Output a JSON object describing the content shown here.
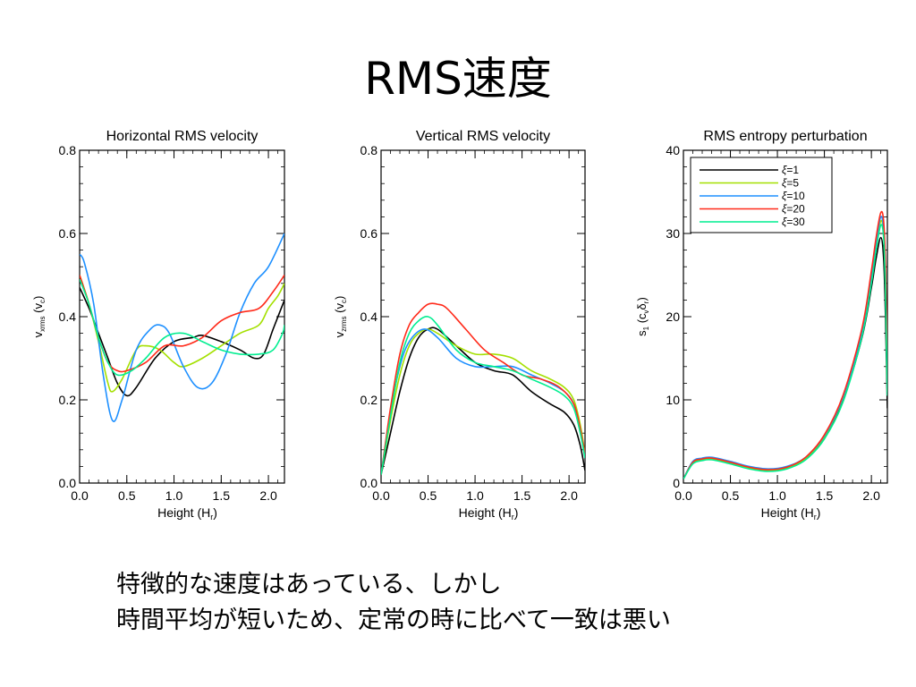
{
  "slide": {
    "title": "RMS速度",
    "caption_lines": [
      "特徴的な速度はあっている、しかし",
      "時間平均が短いため、定常の時に比べて一致は悪い"
    ]
  },
  "chart_data": [
    {
      "type": "line",
      "title": "Horizontal RMS velocity",
      "xlabel": "Height (Hr)",
      "xlabel_main": "Height (H",
      "xlabel_sub": "r",
      "xlabel_tail": ")",
      "ylabel": "vxrms (vc)",
      "ylabel_main": "v",
      "ylabel_sub": "xrms",
      "ylabel_tail": " (v",
      "ylabel_sub2": "c",
      "ylabel_tail2": ")",
      "xlim": [
        0,
        2.17
      ],
      "ylim": [
        0,
        0.8
      ],
      "xticks": [
        "0.0",
        "0.5",
        "1.0",
        "1.5",
        "2.0"
      ],
      "xtick_values": [
        0,
        0.5,
        1.0,
        1.5,
        2.0
      ],
      "yticks": [
        "0.0",
        "0.2",
        "0.4",
        "0.6",
        "0.8"
      ],
      "ytick_values": [
        0,
        0.2,
        0.4,
        0.6,
        0.8
      ],
      "series": [
        {
          "color": "#000000",
          "x": [
            0,
            0.1,
            0.2,
            0.3,
            0.4,
            0.5,
            0.6,
            0.8,
            1.0,
            1.2,
            1.3,
            1.5,
            1.7,
            1.85,
            1.95,
            2.05,
            2.17
          ],
          "y": [
            0.47,
            0.42,
            0.36,
            0.3,
            0.24,
            0.21,
            0.23,
            0.3,
            0.34,
            0.35,
            0.355,
            0.34,
            0.32,
            0.3,
            0.31,
            0.37,
            0.44
          ]
        },
        {
          "color": "#a4e000",
          "x": [
            0,
            0.1,
            0.2,
            0.3,
            0.35,
            0.45,
            0.6,
            0.7,
            0.85,
            1.0,
            1.1,
            1.3,
            1.5,
            1.7,
            1.9,
            2.0,
            2.1,
            2.17
          ],
          "y": [
            0.5,
            0.43,
            0.34,
            0.24,
            0.22,
            0.25,
            0.32,
            0.33,
            0.32,
            0.29,
            0.28,
            0.3,
            0.33,
            0.36,
            0.38,
            0.42,
            0.45,
            0.48
          ]
        },
        {
          "color": "#1e90ff",
          "x": [
            0,
            0.05,
            0.15,
            0.25,
            0.35,
            0.45,
            0.6,
            0.75,
            0.85,
            0.95,
            1.1,
            1.25,
            1.4,
            1.55,
            1.7,
            1.85,
            2.0,
            2.17
          ],
          "y": [
            0.55,
            0.53,
            0.43,
            0.26,
            0.15,
            0.2,
            0.32,
            0.37,
            0.38,
            0.36,
            0.28,
            0.23,
            0.24,
            0.31,
            0.41,
            0.48,
            0.52,
            0.6
          ]
        },
        {
          "color": "#ff2a1a",
          "x": [
            0,
            0.1,
            0.2,
            0.3,
            0.4,
            0.5,
            0.7,
            0.9,
            1.1,
            1.3,
            1.5,
            1.7,
            1.9,
            2.05,
            2.17
          ],
          "y": [
            0.5,
            0.43,
            0.35,
            0.29,
            0.27,
            0.27,
            0.29,
            0.33,
            0.33,
            0.35,
            0.39,
            0.41,
            0.42,
            0.46,
            0.5
          ]
        },
        {
          "color": "#00ee90",
          "x": [
            0,
            0.1,
            0.2,
            0.3,
            0.4,
            0.55,
            0.7,
            0.9,
            1.1,
            1.3,
            1.5,
            1.7,
            1.9,
            2.05,
            2.15,
            2.17
          ],
          "y": [
            0.49,
            0.43,
            0.35,
            0.29,
            0.26,
            0.27,
            0.3,
            0.35,
            0.36,
            0.34,
            0.32,
            0.31,
            0.31,
            0.32,
            0.36,
            0.38
          ]
        }
      ]
    },
    {
      "type": "line",
      "title": "Vertical RMS velocity",
      "xlabel": "Height (Hr)",
      "xlabel_main": "Height (H",
      "xlabel_sub": "r",
      "xlabel_tail": ")",
      "ylabel": "vzrms (vc)",
      "ylabel_main": "v",
      "ylabel_sub": "zrms",
      "ylabel_tail": " (v",
      "ylabel_sub2": "c",
      "ylabel_tail2": ")",
      "xlim": [
        0,
        2.17
      ],
      "ylim": [
        0,
        0.8
      ],
      "xticks": [
        "0.0",
        "0.5",
        "1.0",
        "1.5",
        "2.0"
      ],
      "xtick_values": [
        0,
        0.5,
        1.0,
        1.5,
        2.0
      ],
      "yticks": [
        "0.0",
        "0.2",
        "0.4",
        "0.6",
        "0.8"
      ],
      "ytick_values": [
        0,
        0.2,
        0.4,
        0.6,
        0.8
      ],
      "series": [
        {
          "color": "#000000",
          "x": [
            0,
            0.1,
            0.2,
            0.3,
            0.4,
            0.5,
            0.6,
            0.8,
            1.0,
            1.2,
            1.4,
            1.6,
            1.8,
            1.95,
            2.05,
            2.12,
            2.17
          ],
          "y": [
            0.02,
            0.12,
            0.22,
            0.3,
            0.35,
            0.37,
            0.37,
            0.33,
            0.29,
            0.27,
            0.26,
            0.22,
            0.19,
            0.17,
            0.14,
            0.09,
            0.03
          ]
        },
        {
          "color": "#a4e000",
          "x": [
            0,
            0.1,
            0.2,
            0.3,
            0.4,
            0.5,
            0.6,
            0.8,
            1.0,
            1.2,
            1.4,
            1.6,
            1.8,
            1.95,
            2.05,
            2.12,
            2.17
          ],
          "y": [
            0.02,
            0.15,
            0.26,
            0.33,
            0.36,
            0.37,
            0.36,
            0.33,
            0.31,
            0.31,
            0.3,
            0.27,
            0.25,
            0.23,
            0.2,
            0.14,
            0.07
          ]
        },
        {
          "color": "#1e90ff",
          "x": [
            0,
            0.1,
            0.2,
            0.3,
            0.45,
            0.6,
            0.8,
            1.0,
            1.2,
            1.4,
            1.6,
            1.8,
            1.95,
            2.05,
            2.12,
            2.17
          ],
          "y": [
            0.02,
            0.17,
            0.28,
            0.34,
            0.37,
            0.35,
            0.3,
            0.28,
            0.28,
            0.28,
            0.26,
            0.24,
            0.22,
            0.19,
            0.13,
            0.06
          ]
        },
        {
          "color": "#ff2a1a",
          "x": [
            0,
            0.1,
            0.2,
            0.3,
            0.4,
            0.5,
            0.6,
            0.7,
            0.9,
            1.1,
            1.3,
            1.5,
            1.7,
            1.9,
            2.05,
            2.12,
            2.17
          ],
          "y": [
            0.02,
            0.18,
            0.31,
            0.38,
            0.41,
            0.43,
            0.43,
            0.42,
            0.37,
            0.32,
            0.29,
            0.26,
            0.25,
            0.23,
            0.19,
            0.13,
            0.07
          ]
        },
        {
          "color": "#00ee90",
          "x": [
            0,
            0.1,
            0.2,
            0.3,
            0.4,
            0.5,
            0.6,
            0.8,
            1.0,
            1.2,
            1.4,
            1.6,
            1.8,
            1.95,
            2.05,
            2.12,
            2.17
          ],
          "y": [
            0.02,
            0.16,
            0.29,
            0.36,
            0.39,
            0.4,
            0.38,
            0.32,
            0.29,
            0.28,
            0.27,
            0.25,
            0.23,
            0.21,
            0.18,
            0.12,
            0.06
          ]
        }
      ]
    },
    {
      "type": "line",
      "title": "RMS entropy perturbation",
      "xlabel": "Height (Hr)",
      "xlabel_main": "Height (H",
      "xlabel_sub": "r",
      "xlabel_tail": ")",
      "ylabel": "s1 (cvδr)",
      "ylabel_main": "s",
      "ylabel_sub": "1",
      "ylabel_tail": " (c",
      "ylabel_sub2": "v",
      "ylabel_tail2": "δ",
      "ylabel_sub3": "r",
      "ylabel_tail3": ")",
      "xlim": [
        0,
        2.17
      ],
      "ylim": [
        0,
        40
      ],
      "xticks": [
        "0.0",
        "0.5",
        "1.0",
        "1.5",
        "2.0"
      ],
      "xtick_values": [
        0,
        0.5,
        1.0,
        1.5,
        2.0
      ],
      "yticks": [
        "0",
        "10",
        "20",
        "30",
        "40"
      ],
      "ytick_values": [
        0,
        10,
        20,
        30,
        40
      ],
      "legend": {
        "position": "top-left"
      },
      "series": [
        {
          "name": "ξ=1",
          "legend_symbol": "ξ",
          "legend_value": "=1",
          "color": "#000000",
          "x": [
            0,
            0.1,
            0.2,
            0.3,
            0.5,
            0.7,
            0.9,
            1.1,
            1.3,
            1.5,
            1.7,
            1.9,
            2.0,
            2.05,
            2.1,
            2.13,
            2.15,
            2.17
          ],
          "y": [
            0.5,
            2.5,
            2.9,
            3.0,
            2.5,
            1.9,
            1.6,
            1.9,
            3.0,
            5.5,
            10.0,
            17.5,
            23.5,
            27.0,
            29.5,
            27.0,
            20.0,
            9.0
          ]
        },
        {
          "name": "ξ=5",
          "legend_symbol": "ξ",
          "legend_value": "=5",
          "color": "#a4e000",
          "x": [
            0,
            0.1,
            0.2,
            0.3,
            0.5,
            0.7,
            0.9,
            1.1,
            1.3,
            1.5,
            1.7,
            1.9,
            2.0,
            2.05,
            2.1,
            2.13,
            2.15,
            2.17
          ],
          "y": [
            0.5,
            2.4,
            2.8,
            2.9,
            2.4,
            1.8,
            1.5,
            1.8,
            3.0,
            5.6,
            10.3,
            18.0,
            24.5,
            28.5,
            31.5,
            30.0,
            24.0,
            11.0
          ]
        },
        {
          "name": "ξ=10",
          "legend_symbol": "ξ",
          "legend_value": "=10",
          "color": "#1e90ff",
          "x": [
            0,
            0.1,
            0.2,
            0.3,
            0.5,
            0.7,
            0.9,
            1.1,
            1.3,
            1.5,
            1.7,
            1.9,
            2.0,
            2.05,
            2.1,
            2.13,
            2.15,
            2.17
          ],
          "y": [
            0.5,
            2.6,
            3.0,
            3.1,
            2.6,
            2.0,
            1.7,
            2.0,
            3.1,
            5.7,
            10.4,
            18.2,
            25.0,
            29.0,
            32.0,
            30.5,
            25.0,
            13.0
          ]
        },
        {
          "name": "ξ=20",
          "legend_symbol": "ξ",
          "legend_value": "=20",
          "color": "#ff2a1a",
          "x": [
            0,
            0.1,
            0.2,
            0.3,
            0.5,
            0.7,
            0.9,
            1.1,
            1.3,
            1.5,
            1.7,
            1.9,
            2.0,
            2.05,
            2.1,
            2.13,
            2.15,
            2.17
          ],
          "y": [
            0.5,
            2.5,
            2.9,
            3.0,
            2.5,
            1.9,
            1.6,
            1.9,
            3.1,
            5.8,
            10.6,
            18.6,
            25.5,
            29.5,
            32.5,
            31.5,
            26.0,
            14.0
          ]
        },
        {
          "name": "ξ=30",
          "legend_symbol": "ξ",
          "legend_value": "=30",
          "color": "#00ee90",
          "x": [
            0,
            0.1,
            0.2,
            0.3,
            0.5,
            0.7,
            0.9,
            1.1,
            1.3,
            1.5,
            1.7,
            1.9,
            2.0,
            2.05,
            2.1,
            2.13,
            2.15,
            2.17
          ],
          "y": [
            0.5,
            2.3,
            2.7,
            2.8,
            2.3,
            1.7,
            1.4,
            1.7,
            2.8,
            5.3,
            9.8,
            17.6,
            24.0,
            28.0,
            31.0,
            29.5,
            23.0,
            10.5
          ]
        }
      ]
    }
  ]
}
